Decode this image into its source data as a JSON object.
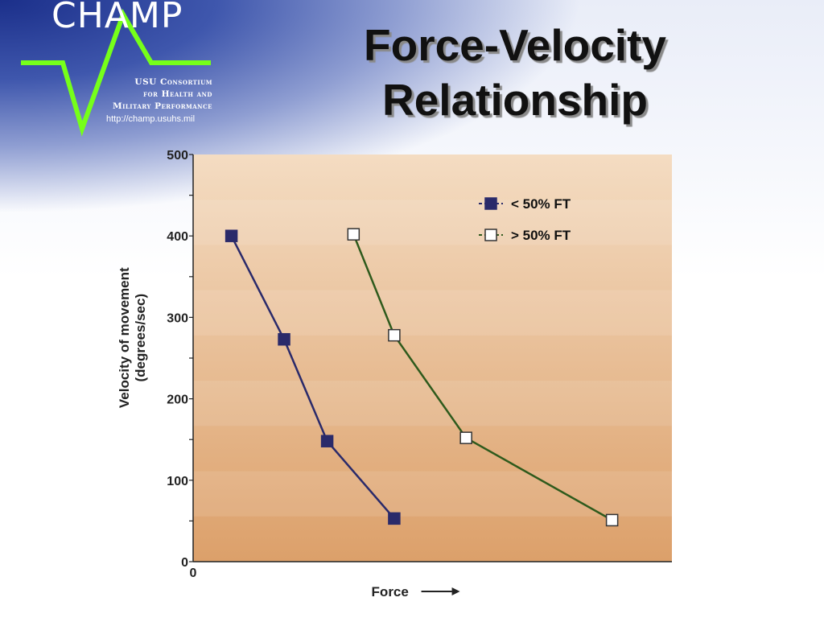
{
  "slide": {
    "title_line1": "Force-Velocity",
    "title_line2": "Relationship"
  },
  "logo": {
    "name": "CHAMP",
    "line1": "USU Consortium",
    "line2": "for Health and",
    "line3": "Military Performance",
    "url": "http://champ.usuhs.mil",
    "accent_color": "#76ff1a"
  },
  "chart_data": {
    "type": "line",
    "title": "",
    "xlabel": "Force",
    "ylabel_line1": "Velocity of movement",
    "ylabel_line2": "(degrees/sec)",
    "ylim": [
      0,
      500
    ],
    "yticks": [
      0,
      100,
      200,
      300,
      400,
      500
    ],
    "xtick_origin": "0",
    "x_axis_unlabeled": true,
    "xlim": [
      0,
      100
    ],
    "grid": false,
    "legend_position": "top-right",
    "background": {
      "top_color": "#f4dcc2",
      "bottom_color": "#dca06a",
      "banded": true
    },
    "series": [
      {
        "name": "< 50% FT",
        "marker": "filled-square",
        "marker_color": "#2a2a6a",
        "line_color": "#2a2a6a",
        "x": [
          8,
          19,
          28,
          42
        ],
        "y": [
          400,
          273,
          148,
          53
        ]
      },
      {
        "name": "> 50% FT",
        "marker": "open-square",
        "marker_color": "#ffffff",
        "line_color": "#2e5a1c",
        "x": [
          33.5,
          42,
          57,
          87.5
        ],
        "y": [
          402,
          278,
          152,
          51
        ]
      }
    ]
  }
}
